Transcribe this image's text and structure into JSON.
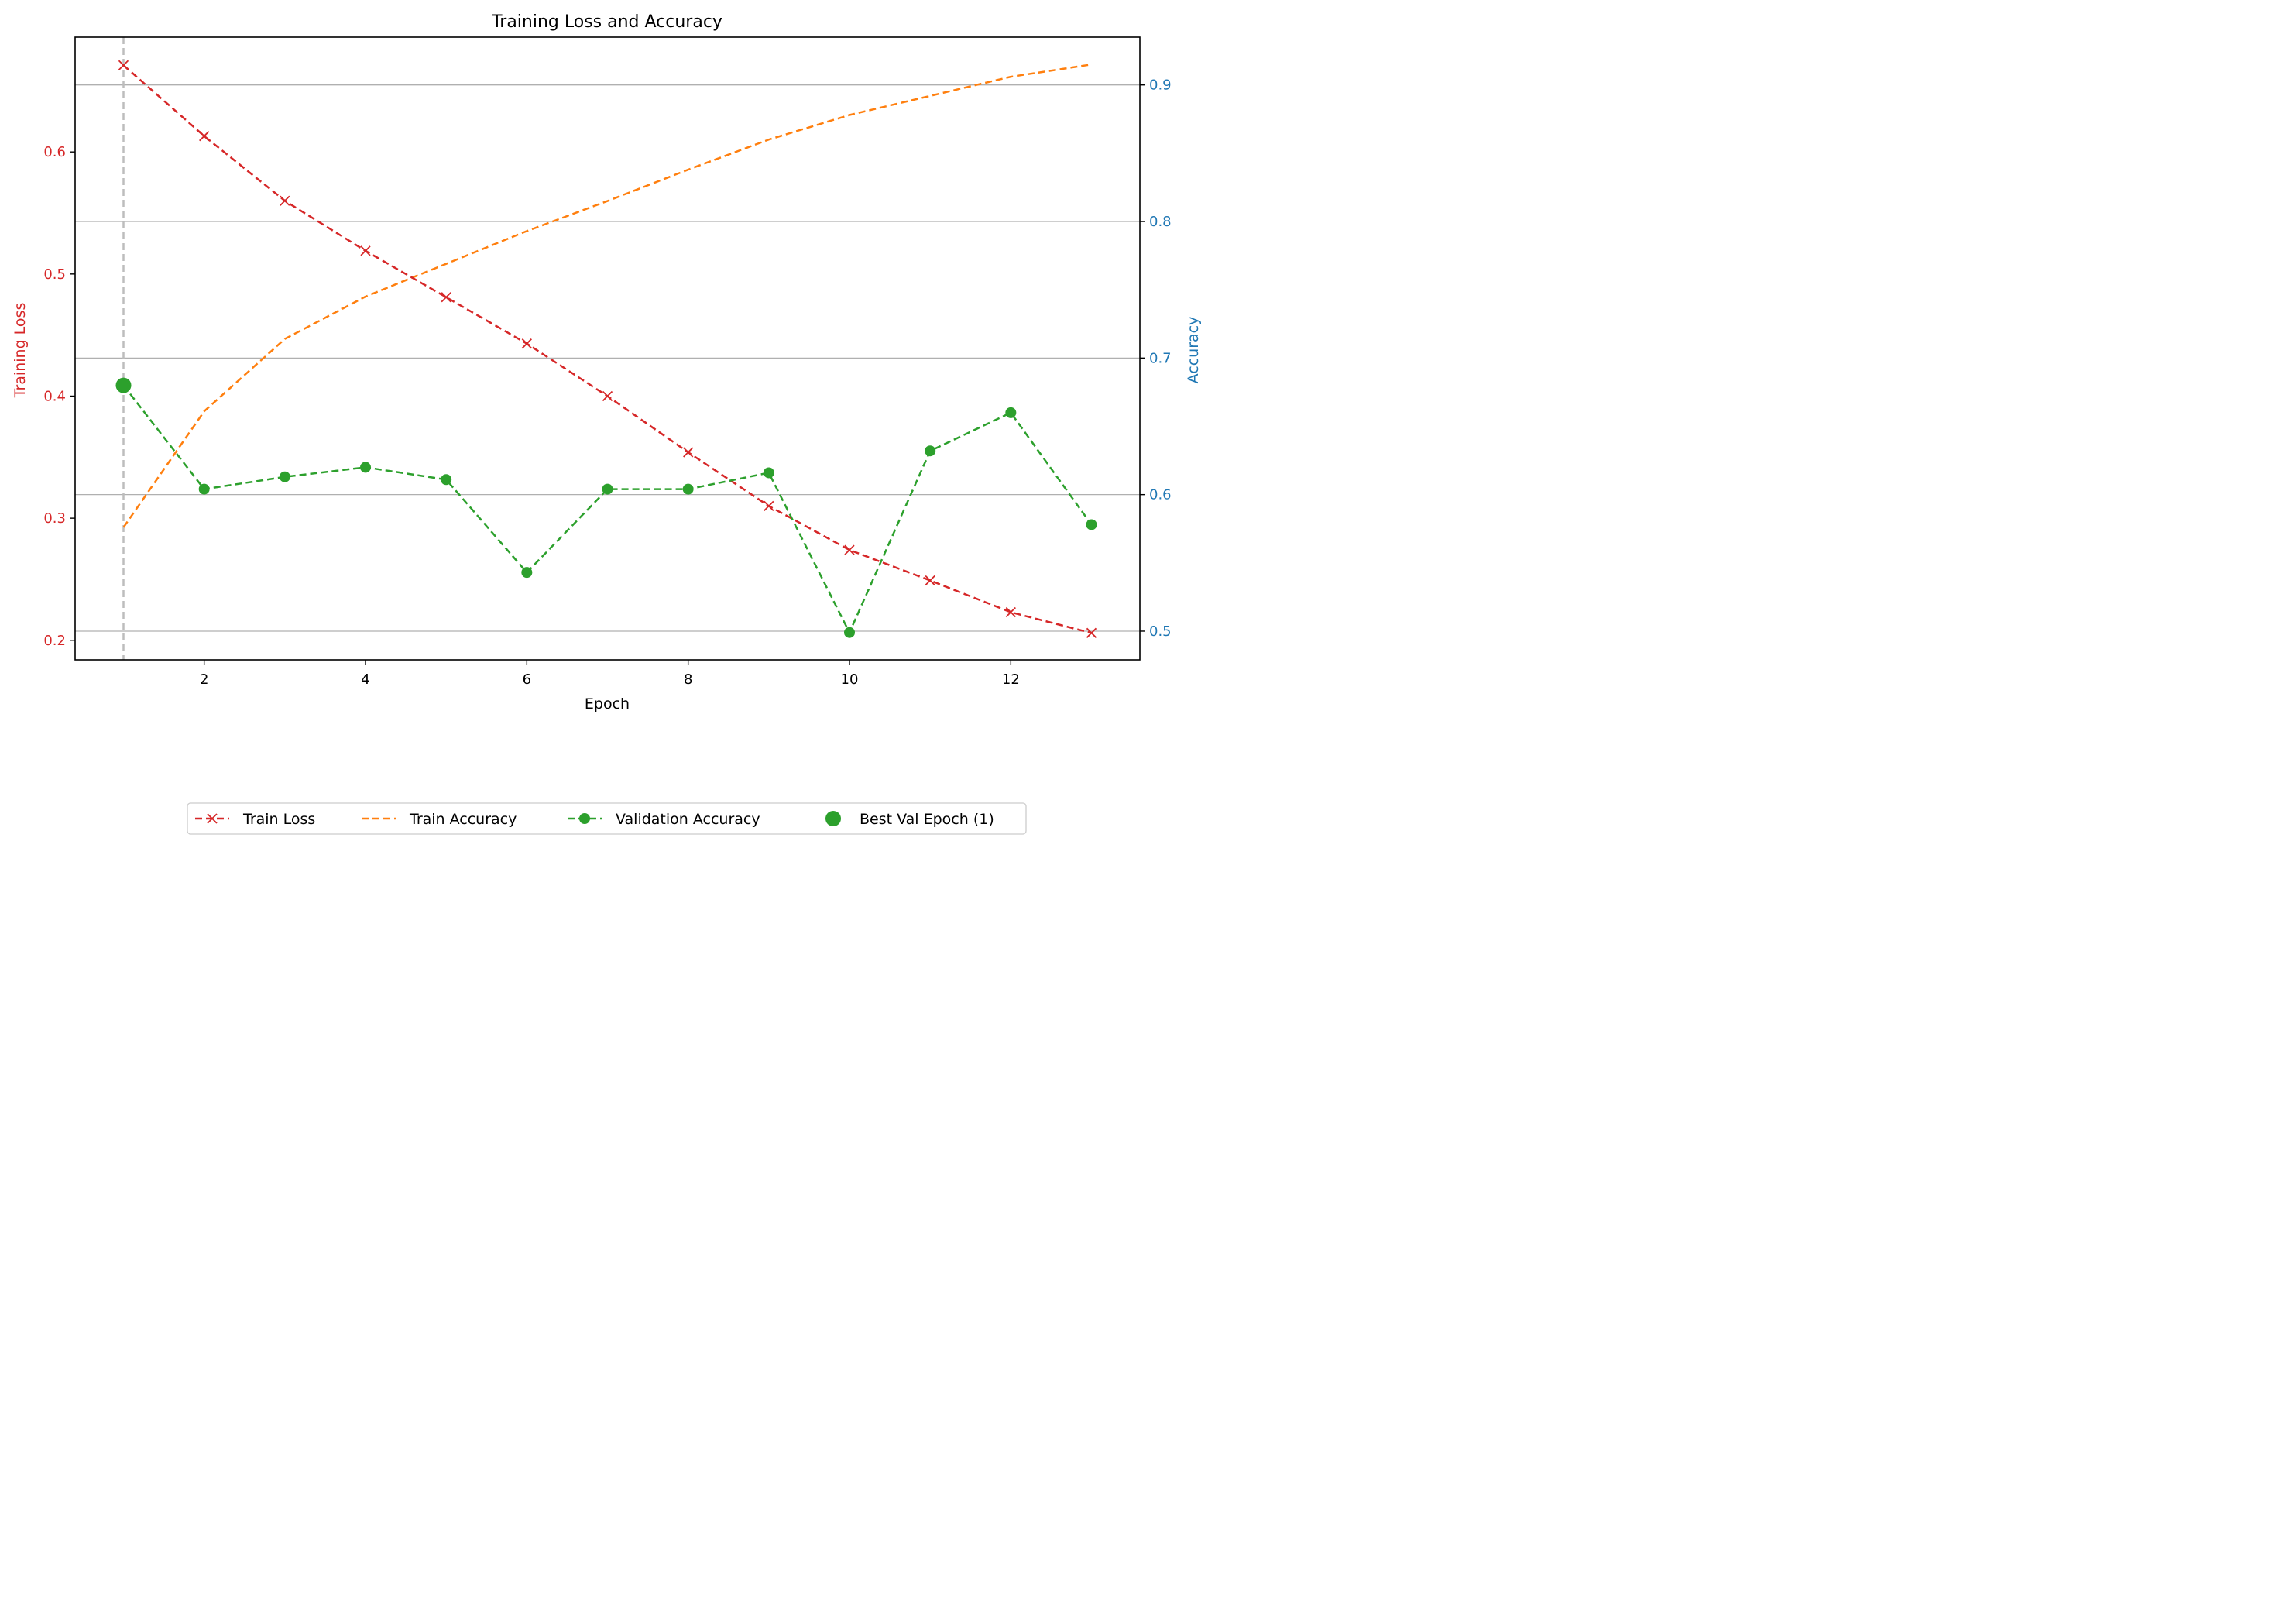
{
  "chart_data": {
    "type": "line",
    "title": "Training Loss and Accuracy",
    "xlabel": "Epoch",
    "ylabel_left": "Training Loss",
    "ylabel_right": "Accuracy",
    "x": [
      1,
      2,
      3,
      4,
      5,
      6,
      7,
      8,
      9,
      10,
      11,
      12,
      13
    ],
    "xlim": [
      0.4,
      13.6
    ],
    "ylim_left": [
      0.184,
      0.694
    ],
    "ylim_right": [
      0.479,
      0.935
    ],
    "xticks": [
      2,
      4,
      6,
      8,
      10,
      12
    ],
    "yticks_left": [
      0.2,
      0.3,
      0.4,
      0.5,
      0.6
    ],
    "yticks_right": [
      0.5,
      0.6,
      0.7,
      0.8,
      0.9
    ],
    "grid": "horizontal (right axis)",
    "best_epoch_marker_x": 1,
    "legend_position": "bottom-center",
    "colors": {
      "loss": "#d62728",
      "train_acc": "#ff7f0e",
      "val_acc": "#2ca02c",
      "left_axis": "#d62728",
      "right_axis": "#1f77b4",
      "grid": "#b0b0b0",
      "best_line": "#bdbdbd"
    },
    "series": [
      {
        "name": "Train Loss",
        "axis": "left",
        "style": "dashed-x",
        "values": [
          0.671,
          0.613,
          0.56,
          0.519,
          0.481,
          0.443,
          0.4,
          0.354,
          0.31,
          0.274,
          0.249,
          0.223,
          0.206
        ]
      },
      {
        "name": "Train Accuracy",
        "axis": "right",
        "style": "dashed",
        "values": [
          0.576,
          0.661,
          0.714,
          0.745,
          0.769,
          0.793,
          0.815,
          0.838,
          0.86,
          0.878,
          0.892,
          0.906,
          0.915
        ]
      },
      {
        "name": "Validation Accuracy",
        "axis": "right",
        "style": "dashed-dot",
        "values": [
          0.68,
          0.604,
          0.613,
          0.62,
          0.611,
          0.543,
          0.604,
          0.604,
          0.616,
          0.499,
          0.632,
          0.66,
          0.578
        ]
      },
      {
        "name": "Best Val Epoch (1)",
        "axis": "right",
        "style": "big-dot",
        "x": [
          1
        ],
        "values": [
          0.68
        ]
      }
    ]
  }
}
